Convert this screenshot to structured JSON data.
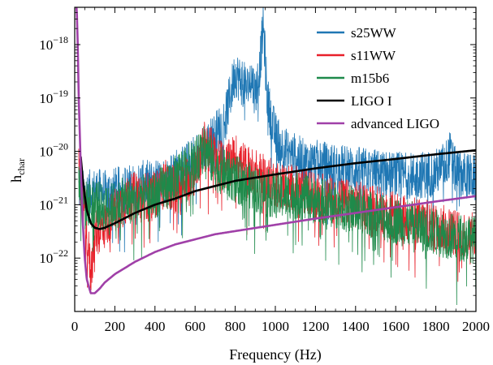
{
  "chart_data": {
    "type": "line",
    "title": "",
    "xlabel": "Frequency  (Hz)",
    "ylabel": {
      "base": "h",
      "subscript": "char"
    },
    "xlim": [
      0,
      2000
    ],
    "ylim": [
      1e-23,
      5e-18
    ],
    "yscale": "log",
    "grid": false,
    "legend_position": "top-right",
    "x_ticks": [
      {
        "value": 0,
        "label": "0"
      },
      {
        "value": 200,
        "label": "200"
      },
      {
        "value": 400,
        "label": "400"
      },
      {
        "value": 600,
        "label": "600"
      },
      {
        "value": 800,
        "label": "800"
      },
      {
        "value": 1000,
        "label": "1000"
      },
      {
        "value": 1200,
        "label": "1200"
      },
      {
        "value": 1400,
        "label": "1400"
      },
      {
        "value": 1600,
        "label": "1600"
      },
      {
        "value": 1800,
        "label": "1800"
      },
      {
        "value": 2000,
        "label": "2000"
      }
    ],
    "y_ticks": [
      {
        "value": 1e-22,
        "base": "10",
        "exp": "−22"
      },
      {
        "value": 1e-21,
        "base": "10",
        "exp": "−21"
      },
      {
        "value": 1e-20,
        "base": "10",
        "exp": "−20"
      },
      {
        "value": 1e-19,
        "base": "10",
        "exp": "−19"
      },
      {
        "value": 1e-18,
        "base": "10",
        "exp": "−18"
      }
    ],
    "series": [
      {
        "name": "s25WW",
        "color": "#1f77b4",
        "style": "noisy",
        "x": [
          20,
          50,
          100,
          150,
          200,
          250,
          300,
          350,
          400,
          450,
          500,
          550,
          600,
          650,
          700,
          750,
          800,
          830,
          860,
          880,
          900,
          920,
          940,
          960,
          980,
          1000,
          1050,
          1100,
          1150,
          1200,
          1300,
          1400,
          1500,
          1600,
          1700,
          1800,
          1850,
          1870,
          1900,
          1950,
          2000
        ],
        "y": [
          2e-21,
          1.5e-21,
          1.8e-21,
          1.6e-21,
          1.8e-21,
          2e-21,
          2.2e-21,
          2.5e-21,
          2.5e-21,
          3e-21,
          4e-21,
          5e-21,
          8e-21,
          1.2e-20,
          2e-20,
          4e-20,
          3e-19,
          2e-19,
          1.5e-19,
          2.5e-19,
          1.2e-19,
          3e-19,
          2.3e-18,
          1e-19,
          4e-20,
          2e-20,
          1e-20,
          8e-21,
          6e-21,
          6e-21,
          5e-21,
          4.5e-21,
          4e-21,
          3.5e-21,
          3.5e-21,
          4e-21,
          6e-21,
          9e-21,
          4e-21,
          3.5e-21,
          3e-21
        ]
      },
      {
        "name": "s11WW",
        "color": "#e8202a",
        "style": "noisy",
        "x": [
          20,
          50,
          80,
          100,
          150,
          200,
          300,
          400,
          450,
          500,
          550,
          600,
          650,
          700,
          750,
          800,
          850,
          900,
          950,
          1000,
          1100,
          1200,
          1300,
          1400,
          1500,
          1600,
          1700,
          1800,
          1900,
          2000
        ],
        "y": [
          4e-21,
          8e-22,
          5e-23,
          3e-22,
          4e-22,
          8e-22,
          1.5e-21,
          1.5e-21,
          2.5e-21,
          2e-21,
          3e-21,
          4e-21,
          1.5e-20,
          8e-21,
          5e-21,
          8e-21,
          5e-21,
          4e-21,
          3e-21,
          2.5e-21,
          2e-21,
          1.5e-21,
          1.2e-21,
          1e-21,
          9e-22,
          6e-22,
          5e-22,
          4e-22,
          3e-22,
          2.5e-22
        ]
      },
      {
        "name": "m15b6",
        "color": "#1e8a4a",
        "style": "noisy",
        "x": [
          20,
          50,
          100,
          150,
          200,
          250,
          300,
          400,
          500,
          550,
          600,
          650,
          700,
          800,
          900,
          1000,
          1100,
          1200,
          1300,
          1400,
          1500,
          1600,
          1700,
          1800,
          1900,
          2000
        ],
        "y": [
          3e-21,
          1e-21,
          1.2e-21,
          8e-22,
          1e-21,
          1.2e-21,
          1.2e-21,
          1.5e-21,
          3e-21,
          5e-21,
          6e-21,
          1.2e-20,
          5e-21,
          3e-21,
          2e-21,
          1.5e-21,
          1.5e-21,
          1.2e-21,
          1e-21,
          8e-22,
          6e-22,
          5e-22,
          4e-22,
          3e-22,
          2.5e-22,
          2.2e-22
        ]
      },
      {
        "name": "LIGO  I",
        "color": "#000000",
        "style": "smooth",
        "x": [
          30,
          40,
          50,
          60,
          80,
          100,
          125,
          150,
          200,
          300,
          400,
          500,
          600,
          800,
          1000,
          1200,
          1400,
          1600,
          1800,
          2000
        ],
        "y": [
          8e-21,
          3e-21,
          1.5e-21,
          8e-22,
          4.5e-22,
          3.7e-22,
          3.5e-22,
          3.7e-22,
          4.5e-22,
          7e-22,
          1e-21,
          1.3e-21,
          1.8e-21,
          2.8e-21,
          3.7e-21,
          4.8e-21,
          6e-21,
          7.2e-21,
          8.8e-21,
          1.05e-20
        ]
      },
      {
        "name": "advanced  LIGO",
        "color": "#a040a8",
        "style": "smooth",
        "x": [
          5,
          10,
          15,
          20,
          30,
          40,
          50,
          60,
          80,
          100,
          125,
          150,
          200,
          300,
          400,
          500,
          700,
          1000,
          1200,
          1400,
          1600,
          1800,
          2000
        ],
        "y": [
          5e-18,
          5e-18,
          1e-18,
          1e-19,
          5e-21,
          5e-22,
          1e-22,
          4e-23,
          2.2e-23,
          2.2e-23,
          2.7e-23,
          3.5e-23,
          5e-23,
          8.5e-23,
          1.3e-22,
          1.8e-22,
          2.8e-22,
          4.2e-22,
          5.5e-22,
          7e-22,
          9e-22,
          1.15e-21,
          1.45e-21
        ]
      }
    ]
  }
}
